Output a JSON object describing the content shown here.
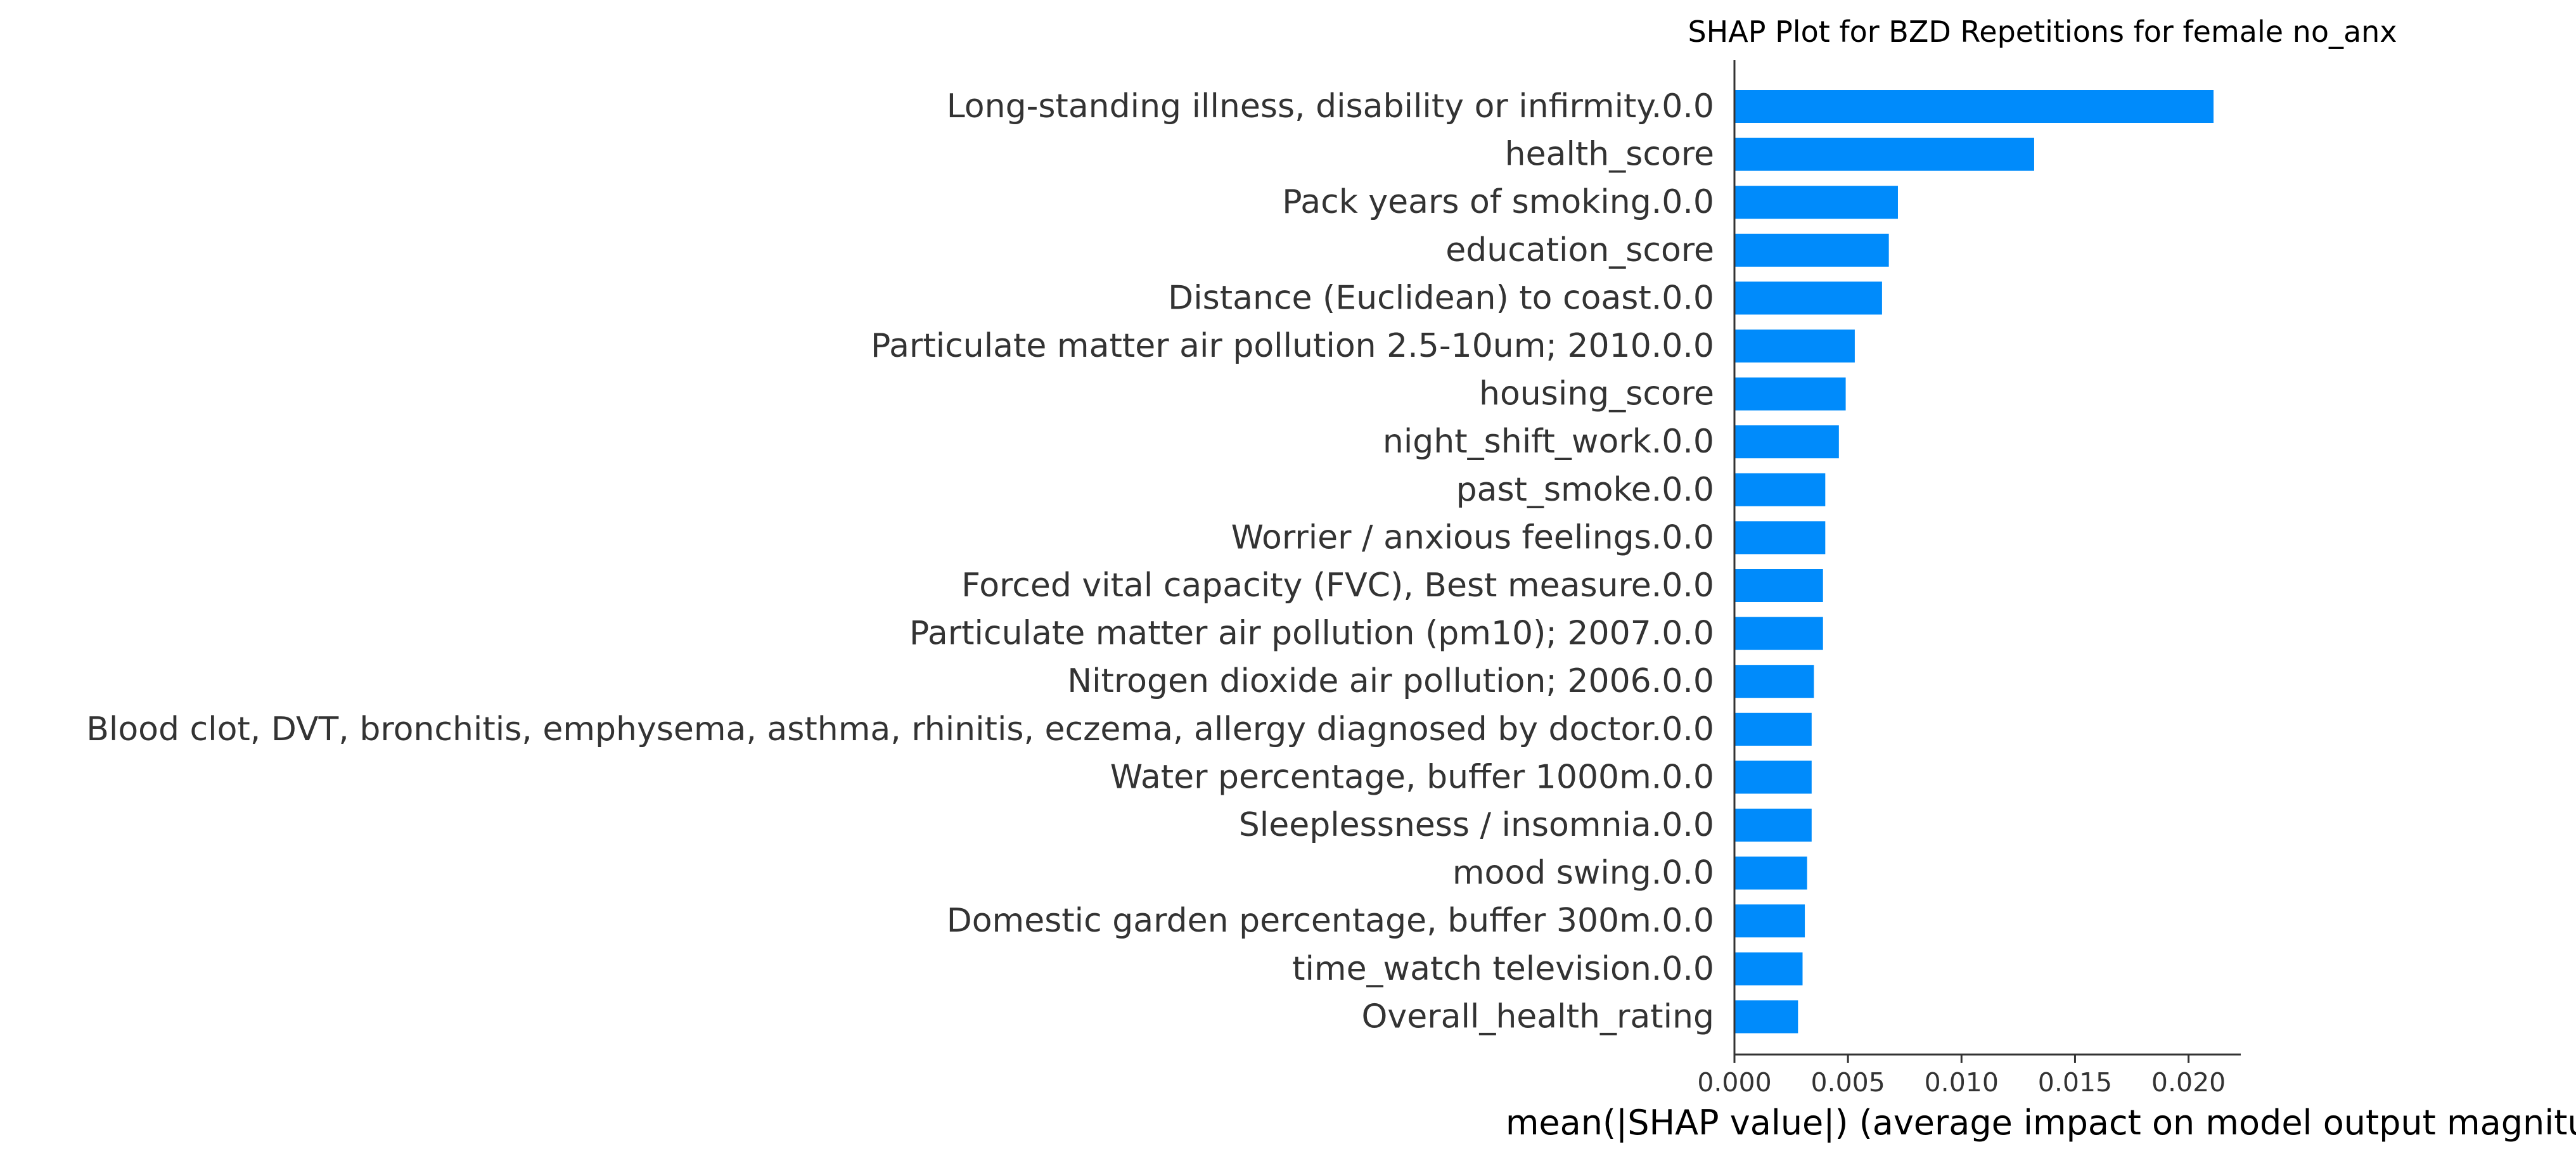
{
  "chart_data": {
    "type": "bar",
    "orientation": "horizontal",
    "title": "SHAP Plot for BZD Repetitions for female no_anx",
    "xlabel": "mean(|SHAP value|) (average impact on model output magnitude)",
    "ylabel": "",
    "xlim": [
      0.0,
      0.0223
    ],
    "xticks": [
      0.0,
      0.005,
      0.01,
      0.015,
      0.02
    ],
    "xtick_labels": [
      "0.000",
      "0.005",
      "0.010",
      "0.015",
      "0.020"
    ],
    "grid": false,
    "legend": "none",
    "bar_color": "#008bfb",
    "categories": [
      "Long-standing illness, disability or infirmity.0.0",
      "health_score",
      "Pack years of smoking.0.0",
      "education_score",
      "Distance (Euclidean) to coast.0.0",
      "Particulate matter air pollution 2.5-10um; 2010.0.0",
      "housing_score",
      "night_shift_work.0.0",
      "past_smoke.0.0",
      "Worrier / anxious feelings.0.0",
      "Forced vital capacity (FVC), Best measure.0.0",
      "Particulate matter air pollution (pm10); 2007.0.0",
      "Nitrogen dioxide air pollution; 2006.0.0",
      "Blood clot, DVT, bronchitis, emphysema, asthma, rhinitis, eczema, allergy diagnosed by doctor.0.0",
      "Water percentage, buffer 1000m.0.0",
      "Sleeplessness / insomnia.0.0",
      "mood swing.0.0",
      "Domestic garden percentage, buffer 300m.0.0",
      "time_watch television.0.0",
      "Overall_health_rating"
    ],
    "values": [
      0.0211,
      0.0132,
      0.0072,
      0.0068,
      0.0065,
      0.0053,
      0.0049,
      0.0046,
      0.004,
      0.004,
      0.0039,
      0.0039,
      0.0035,
      0.0034,
      0.0034,
      0.0034,
      0.0032,
      0.0031,
      0.003,
      0.0028
    ]
  }
}
